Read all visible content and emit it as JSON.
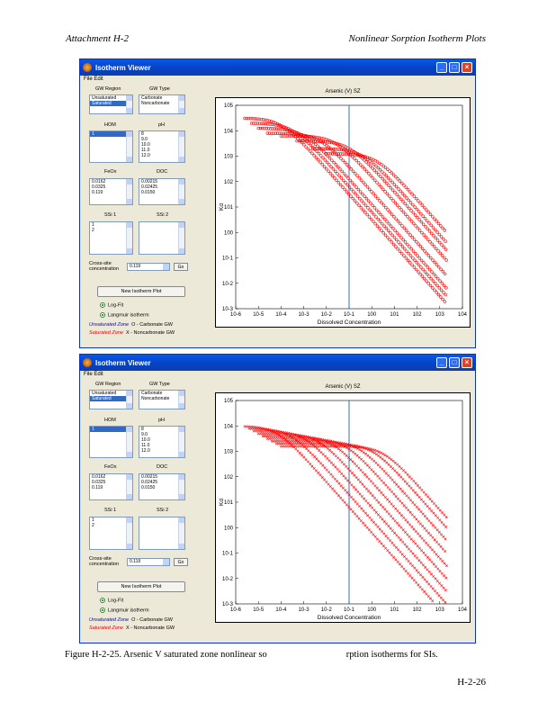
{
  "header": {
    "left": "Attachment H-2",
    "right": "Nonlinear Sorption Isotherm Plots"
  },
  "caption_part1": "Figure H-2-25. Arsenic V saturated zone nonlinear so",
  "caption_part2": "rption isotherms for SIs.",
  "page_number": "H-2-26",
  "windows": [
    {
      "title": "Isotherm Viewer",
      "menu": "File Edit",
      "gw_region_label": "GW Region",
      "gw_type_label": "GW Type",
      "gw_region_items": [
        "Unsaturated",
        "Saturated"
      ],
      "gw_type_items": [
        "Carbonate",
        "Noncarbonate"
      ],
      "hom_label": "HOM",
      "ph_label": "pH",
      "hom_items": [
        "1"
      ],
      "ph_items": [
        "8",
        "9.0",
        "10.0",
        "11.0",
        "12.0"
      ],
      "feox_label": "FeOx",
      "doc_label": "DOC",
      "feox_items": [
        "0.0162",
        "0.0325",
        "0.119"
      ],
      "doc_items": [
        "0.00215",
        "0.02425",
        "0.0150"
      ],
      "ssi_label": "SSi 1",
      "ssi2_label": "SSi 2",
      "ssi_items": [
        "1",
        "2"
      ],
      "conc_label": "Cross-site concentration",
      "conc_value": "0.119",
      "go_label": "Go",
      "new_button": "New Isotherm Plot",
      "radio1": "Log-Fit",
      "radio2": "Langmuir isotherm",
      "legend1_key": "Unsaturated Zone",
      "legend1_val": "O - Carbonate GW",
      "legend2_key": "Saturated Zone",
      "legend2_val": "X - Noncarbonate GW",
      "plot_title": "Arsenic (V) SZ",
      "ylabel": "Kd",
      "xlabel": "Dissolved Concentration",
      "marker": "o"
    },
    {
      "title": "Isotherm Viewer",
      "menu": "File Edit",
      "gw_region_label": "GW Region",
      "gw_type_label": "GW Type",
      "gw_region_items": [
        "Unsaturated",
        "Saturated"
      ],
      "gw_type_items": [
        "Carbonate",
        "Noncarbonate"
      ],
      "hom_label": "HOM",
      "ph_label": "pH",
      "hom_items": [
        "1"
      ],
      "ph_items": [
        "8",
        "9.0",
        "10.0",
        "11.0",
        "12.0"
      ],
      "feox_label": "FeOx",
      "doc_label": "DOC",
      "feox_items": [
        "0.0162",
        "0.0325",
        "0.119"
      ],
      "doc_items": [
        "0.00215",
        "0.02425",
        "0.0150"
      ],
      "ssi_label": "SSi 1",
      "ssi2_label": "SSi 2",
      "ssi_items": [
        "1",
        "2"
      ],
      "conc_label": "Cross-site concentration",
      "conc_value": "0.119",
      "go_label": "Go",
      "new_button": "New Isotherm Plot",
      "radio1": "Log-Fit",
      "radio2": "Langmuir isotherm",
      "legend1_key": "Unsaturated Zone",
      "legend1_val": "O - Carbonate GW",
      "legend2_key": "Saturated Zone",
      "legend2_val": "X - Noncarbonate GW",
      "plot_title": "Arsenic (V) SZ",
      "ylabel": "Kd",
      "xlabel": "Dissolved Concentration",
      "marker": "x"
    }
  ],
  "chart_data": [
    {
      "type": "scatter",
      "title": "Arsenic (V) SZ",
      "xlabel": "Dissolved Concentration",
      "ylabel": "Kd",
      "xscale": "log",
      "yscale": "log",
      "xlim_exp": [
        -6,
        4
      ],
      "ylim_exp": [
        -3,
        5
      ],
      "x_ticks": [
        "10^-6",
        "10^-5",
        "10^-4",
        "10^-3",
        "10^-2",
        "10^-1",
        "10^0",
        "10^1",
        "10^2",
        "10^3",
        "10^4"
      ],
      "y_ticks": [
        "10^-3",
        "10^-2",
        "10^-1",
        "10^0",
        "10^1",
        "10^2",
        "10^3",
        "10^4",
        "10^5"
      ],
      "vertical_line_x": "10^-1",
      "series_color": "#ff0000",
      "marker": "circle",
      "curves": [
        {
          "plateau_exp": 4.5,
          "knee_x_exp": -4.0,
          "start_x_exp": -5.6
        },
        {
          "plateau_exp": 4.3,
          "knee_x_exp": -3.5,
          "start_x_exp": -5.3
        },
        {
          "plateau_exp": 4.1,
          "knee_x_exp": -3.0,
          "start_x_exp": -5.0
        },
        {
          "plateau_exp": 3.9,
          "knee_x_exp": -2.3,
          "start_x_exp": -4.6
        },
        {
          "plateau_exp": 3.8,
          "knee_x_exp": -1.6,
          "start_x_exp": -4.0
        },
        {
          "plateau_exp": 3.6,
          "knee_x_exp": -1.0,
          "start_x_exp": -3.3
        },
        {
          "plateau_exp": 3.3,
          "knee_x_exp": -0.4,
          "start_x_exp": -2.6
        },
        {
          "plateau_exp": 3.1,
          "knee_x_exp": 0.2,
          "start_x_exp": -2.0
        }
      ],
      "x_max_exp": 3.3
    },
    {
      "type": "scatter",
      "title": "Arsenic (V) SZ",
      "xlabel": "Dissolved Concentration",
      "ylabel": "Kd",
      "xscale": "log",
      "yscale": "log",
      "xlim_exp": [
        -6,
        4
      ],
      "ylim_exp": [
        -3,
        5
      ],
      "x_ticks": [
        "10^-6",
        "10^-5",
        "10^-4",
        "10^-3",
        "10^-2",
        "10^-1",
        "10^0",
        "10^1",
        "10^2",
        "10^3",
        "10^4"
      ],
      "y_ticks": [
        "10^-3",
        "10^-2",
        "10^-1",
        "10^0",
        "10^1",
        "10^2",
        "10^3",
        "10^4",
        "10^5"
      ],
      "vertical_line_x": "10^-1",
      "series_color": "#ff0000",
      "marker": "x",
      "curves": [
        {
          "plateau_exp": 4.0,
          "knee_x_exp": -4.2,
          "start_x_exp": -5.6
        },
        {
          "plateau_exp": 3.9,
          "knee_x_exp": -3.6,
          "start_x_exp": -5.4
        },
        {
          "plateau_exp": 3.8,
          "knee_x_exp": -3.0,
          "start_x_exp": -5.2
        },
        {
          "plateau_exp": 3.7,
          "knee_x_exp": -2.4,
          "start_x_exp": -5.0
        },
        {
          "plateau_exp": 3.6,
          "knee_x_exp": -1.8,
          "start_x_exp": -4.8
        },
        {
          "plateau_exp": 3.5,
          "knee_x_exp": -1.2,
          "start_x_exp": -4.6
        },
        {
          "plateau_exp": 3.4,
          "knee_x_exp": -0.6,
          "start_x_exp": -4.4
        },
        {
          "plateau_exp": 3.3,
          "knee_x_exp": 0.0,
          "start_x_exp": -4.2
        },
        {
          "plateau_exp": 3.2,
          "knee_x_exp": 0.5,
          "start_x_exp": -4.0
        }
      ],
      "x_max_exp": 3.3
    }
  ]
}
